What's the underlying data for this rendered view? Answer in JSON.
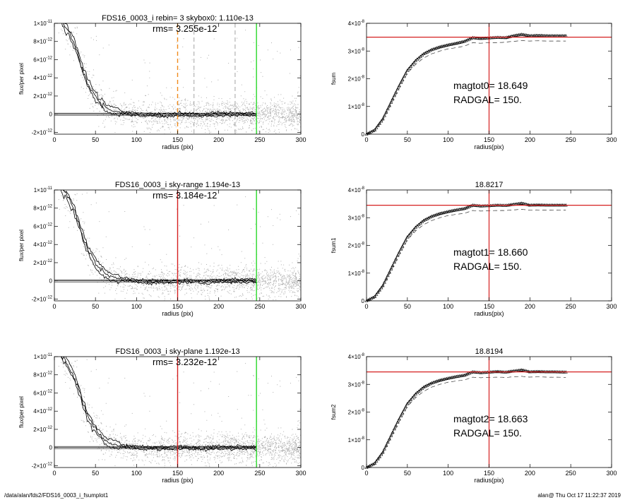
{
  "footer": {
    "path": "/data/alan/fds2/FDS16_0003_i_fsumplot1",
    "stamp": "alan@  Thu Oct 17 11:22:37 2019"
  },
  "colors": {
    "red": "#d62020",
    "green": "#2bd82b",
    "orange": "#f08a1c",
    "points": "#a8a8a8",
    "profile": "#000000",
    "dashed_gray": "#8c8c8c"
  },
  "chart_data": [
    {
      "type": "scatter",
      "panel": "profile-1",
      "title": "FDS16_0003_i rebin= 3    skybox0:  1.110e-13",
      "annotation": "rms= 3.255e-12",
      "xlabel": "radius (pix)",
      "ylabel": "flux/per pixel",
      "xlim": [
        0,
        300
      ],
      "ylim": [
        -2.2e-12,
        1e-11
      ],
      "xticks": [
        "0",
        "50",
        "100",
        "150",
        "200",
        "250",
        "300"
      ],
      "yticks": [
        {
          "value": 1e-11,
          "mant": "1×10",
          "exp": "-11"
        },
        {
          "value": 8e-12,
          "mant": "8×10",
          "exp": "-12"
        },
        {
          "value": 6e-12,
          "mant": "6×10",
          "exp": "-12"
        },
        {
          "value": 4e-12,
          "mant": "4×10",
          "exp": "-12"
        },
        {
          "value": 2e-12,
          "mant": "2×10",
          "exp": "-12"
        },
        {
          "value": 0,
          "mant": "0",
          "exp": ""
        },
        {
          "value": -2e-12,
          "mant": "-2×10",
          "exp": "-12"
        }
      ],
      "vlines": [
        {
          "x": 150,
          "color": "orange",
          "style": "dashed"
        },
        {
          "x": 170,
          "color": "dashed_gray",
          "style": "dashed"
        },
        {
          "x": 220,
          "color": "dashed_gray",
          "style": "dashed"
        },
        {
          "x": 246,
          "color": "green",
          "style": "solid"
        }
      ],
      "profile": {
        "r": [
          5,
          10,
          15,
          20,
          25,
          30,
          35,
          40,
          45,
          50,
          55,
          60,
          65,
          70,
          80,
          90,
          100,
          120,
          140,
          160,
          180,
          200,
          220,
          246
        ],
        "flux": [
          1.1e-11,
          1e-11,
          9.4e-12,
          8.6e-12,
          7.6e-12,
          6.2e-12,
          4.8e-12,
          3.6e-12,
          2.7e-12,
          2e-12,
          1.4e-12,
          9e-13,
          6e-13,
          4e-13,
          2e-13,
          1e-13,
          0,
          -1e-13,
          -1e-13,
          0,
          -1e-13,
          0,
          0,
          0
        ]
      }
    },
    {
      "type": "line",
      "panel": "growth-1",
      "title": "",
      "ylabel": "fsum",
      "xlabel": "radius(pix)",
      "xlim": [
        0,
        300
      ],
      "ylim": [
        0,
        4e-08
      ],
      "xticks": [
        "0",
        "50",
        "100",
        "150",
        "200",
        "250",
        "300"
      ],
      "yticks": [
        {
          "value": 4e-08,
          "mant": "4×10",
          "exp": "-8"
        },
        {
          "value": 3e-08,
          "mant": "3×10",
          "exp": "-8"
        },
        {
          "value": 2e-08,
          "mant": "2×10",
          "exp": "-8"
        },
        {
          "value": 1e-08,
          "mant": "1×10",
          "exp": "-8"
        },
        {
          "value": 0,
          "mant": "0",
          "exp": ""
        }
      ],
      "hline": 3.5e-08,
      "vline": 150,
      "annotations": [
        "magtot0=  18.649",
        "RADGAL=    150."
      ],
      "curve": {
        "r": [
          0,
          10,
          20,
          30,
          40,
          50,
          60,
          70,
          80,
          90,
          100,
          110,
          120,
          130,
          140,
          150,
          160,
          170,
          180,
          190,
          200,
          210,
          220,
          230,
          245
        ],
        "fsum": [
          0,
          1.5e-09,
          5.5e-09,
          1.15e-08,
          1.75e-08,
          2.3e-08,
          2.65e-08,
          2.9e-08,
          3.05e-08,
          3.15e-08,
          3.22e-08,
          3.28e-08,
          3.35e-08,
          3.48e-08,
          3.45e-08,
          3.47e-08,
          3.49e-08,
          3.48e-08,
          3.55e-08,
          3.6e-08,
          3.55e-08,
          3.56e-08,
          3.55e-08,
          3.55e-08,
          3.55e-08
        ]
      },
      "curve_lower": [
        0,
        1.2e-09,
        5e-09,
        1.08e-08,
        1.65e-08,
        2.2e-08,
        2.52e-08,
        2.75e-08,
        2.9e-08,
        3e-08,
        3.08e-08,
        3.12e-08,
        3.18e-08,
        3.3e-08,
        3.28e-08,
        3.3e-08,
        3.3e-08,
        3.32e-08,
        3.35e-08,
        3.38e-08,
        3.36e-08,
        3.37e-08,
        3.36e-08,
        3.36e-08,
        3.36e-08
      ]
    },
    {
      "type": "scatter",
      "panel": "profile-2",
      "title": "FDS16_0003_i sky-range  1.194e-13",
      "annotation": "rms= 3.184e-12",
      "xlabel": "radius (pix)",
      "ylabel": "flux/per pixel",
      "xlim": [
        0,
        300
      ],
      "ylim": [
        -2.2e-12,
        1e-11
      ],
      "xticks": [
        "0",
        "50",
        "100",
        "150",
        "200",
        "250",
        "300"
      ],
      "yticks": [
        {
          "value": 1e-11,
          "mant": "1×10",
          "exp": "-11"
        },
        {
          "value": 8e-12,
          "mant": "8×10",
          "exp": "-12"
        },
        {
          "value": 6e-12,
          "mant": "6×10",
          "exp": "-12"
        },
        {
          "value": 4e-12,
          "mant": "4×10",
          "exp": "-12"
        },
        {
          "value": 2e-12,
          "mant": "2×10",
          "exp": "-12"
        },
        {
          "value": 0,
          "mant": "0",
          "exp": ""
        },
        {
          "value": -2e-12,
          "mant": "-2×10",
          "exp": "-12"
        }
      ],
      "vlines": [
        {
          "x": 150,
          "color": "red",
          "style": "solid"
        },
        {
          "x": 246,
          "color": "green",
          "style": "solid"
        }
      ],
      "profile": {
        "r": [
          5,
          10,
          15,
          20,
          25,
          30,
          35,
          40,
          45,
          50,
          55,
          60,
          65,
          70,
          80,
          90,
          100,
          120,
          140,
          160,
          180,
          200,
          220,
          246
        ],
        "flux": [
          1.1e-11,
          1e-11,
          9.4e-12,
          8.6e-12,
          7.6e-12,
          6.2e-12,
          4.8e-12,
          3.6e-12,
          2.7e-12,
          2e-12,
          1.4e-12,
          9e-13,
          6e-13,
          4e-13,
          2e-13,
          1e-13,
          0,
          -1e-13,
          -1e-13,
          0,
          -1e-13,
          0,
          0,
          0
        ]
      }
    },
    {
      "type": "line",
      "panel": "growth-2",
      "title": "18.8217",
      "ylabel": "fsum1",
      "xlabel": "radius(pix)",
      "xlim": [
        0,
        300
      ],
      "ylim": [
        0,
        4e-08
      ],
      "xticks": [
        "0",
        "50",
        "100",
        "150",
        "200",
        "250",
        "300"
      ],
      "yticks": [
        {
          "value": 4e-08,
          "mant": "4×10",
          "exp": "-8"
        },
        {
          "value": 3e-08,
          "mant": "3×10",
          "exp": "-8"
        },
        {
          "value": 2e-08,
          "mant": "2×10",
          "exp": "-8"
        },
        {
          "value": 1e-08,
          "mant": "1×10",
          "exp": "-8"
        },
        {
          "value": 0,
          "mant": "0",
          "exp": ""
        }
      ],
      "hline": 3.45e-08,
      "vline": 150,
      "annotations": [
        "magtot1=  18.660",
        "RADGAL=    150."
      ],
      "curve": {
        "r": [
          0,
          10,
          20,
          30,
          40,
          50,
          60,
          70,
          80,
          90,
          100,
          110,
          120,
          130,
          140,
          150,
          160,
          170,
          180,
          190,
          200,
          210,
          220,
          230,
          245
        ],
        "fsum": [
          0,
          1.5e-09,
          5.5e-09,
          1.15e-08,
          1.75e-08,
          2.3e-08,
          2.65e-08,
          2.9e-08,
          3.05e-08,
          3.15e-08,
          3.22e-08,
          3.28e-08,
          3.33e-08,
          3.45e-08,
          3.42e-08,
          3.43e-08,
          3.45e-08,
          3.44e-08,
          3.48e-08,
          3.52e-08,
          3.45e-08,
          3.46e-08,
          3.45e-08,
          3.45e-08,
          3.45e-08
        ]
      },
      "curve_lower": [
        0,
        1.2e-09,
        5e-09,
        1.08e-08,
        1.65e-08,
        2.2e-08,
        2.52e-08,
        2.75e-08,
        2.9e-08,
        3e-08,
        3.08e-08,
        3.12e-08,
        3.16e-08,
        3.26e-08,
        3.24e-08,
        3.25e-08,
        3.26e-08,
        3.26e-08,
        3.28e-08,
        3.3e-08,
        3.27e-08,
        3.28e-08,
        3.27e-08,
        3.27e-08,
        3.27e-08
      ]
    },
    {
      "type": "scatter",
      "panel": "profile-3",
      "title": "FDS16_0003_i sky-plane  1.192e-13",
      "annotation": "rms= 3.232e-12",
      "xlabel": "radius (pix)",
      "ylabel": "flux/per pixel",
      "xlim": [
        0,
        300
      ],
      "ylim": [
        -2.2e-12,
        1e-11
      ],
      "xticks": [
        "0",
        "50",
        "100",
        "150",
        "200",
        "250",
        "300"
      ],
      "yticks": [
        {
          "value": 1e-11,
          "mant": "1×10",
          "exp": "-11"
        },
        {
          "value": 8e-12,
          "mant": "8×10",
          "exp": "-12"
        },
        {
          "value": 6e-12,
          "mant": "6×10",
          "exp": "-12"
        },
        {
          "value": 4e-12,
          "mant": "4×10",
          "exp": "-12"
        },
        {
          "value": 2e-12,
          "mant": "2×10",
          "exp": "-12"
        },
        {
          "value": 0,
          "mant": "0",
          "exp": ""
        },
        {
          "value": -2e-12,
          "mant": "-2×10",
          "exp": "-12"
        }
      ],
      "vlines": [
        {
          "x": 150,
          "color": "red",
          "style": "solid"
        },
        {
          "x": 246,
          "color": "green",
          "style": "solid"
        }
      ],
      "profile": {
        "r": [
          5,
          10,
          15,
          20,
          25,
          30,
          35,
          40,
          45,
          50,
          55,
          60,
          65,
          70,
          80,
          90,
          100,
          120,
          140,
          160,
          180,
          200,
          220,
          246
        ],
        "flux": [
          1.1e-11,
          1e-11,
          9.4e-12,
          8.6e-12,
          7.6e-12,
          6.2e-12,
          4.8e-12,
          3.6e-12,
          2.7e-12,
          2e-12,
          1.4e-12,
          9e-13,
          6e-13,
          4e-13,
          2e-13,
          1e-13,
          0,
          -1e-13,
          -1e-13,
          0,
          -1e-13,
          0,
          0,
          0
        ]
      }
    },
    {
      "type": "line",
      "panel": "growth-3",
      "title": "18.8194",
      "ylabel": "fsum2",
      "xlabel": "radius(pix)",
      "xlim": [
        0,
        300
      ],
      "ylim": [
        0,
        4e-08
      ],
      "xticks": [
        "0",
        "50",
        "100",
        "150",
        "200",
        "250",
        "300"
      ],
      "yticks": [
        {
          "value": 4e-08,
          "mant": "4×10",
          "exp": "-8"
        },
        {
          "value": 3e-08,
          "mant": "3×10",
          "exp": "-8"
        },
        {
          "value": 2e-08,
          "mant": "2×10",
          "exp": "-8"
        },
        {
          "value": 1e-08,
          "mant": "1×10",
          "exp": "-8"
        },
        {
          "value": 0,
          "mant": "0",
          "exp": ""
        }
      ],
      "hline": 3.45e-08,
      "vline": 150,
      "annotations": [
        "magtot2=  18.663",
        "RADGAL=    150."
      ],
      "curve": {
        "r": [
          0,
          10,
          20,
          30,
          40,
          50,
          60,
          70,
          80,
          90,
          100,
          110,
          120,
          130,
          140,
          150,
          160,
          170,
          180,
          190,
          200,
          210,
          220,
          230,
          245
        ],
        "fsum": [
          0,
          1.5e-09,
          5.5e-09,
          1.15e-08,
          1.75e-08,
          2.3e-08,
          2.65e-08,
          2.9e-08,
          3.05e-08,
          3.15e-08,
          3.22e-08,
          3.28e-08,
          3.33e-08,
          3.45e-08,
          3.42e-08,
          3.44e-08,
          3.46e-08,
          3.44e-08,
          3.48e-08,
          3.52e-08,
          3.45e-08,
          3.46e-08,
          3.45e-08,
          3.45e-08,
          3.44e-08
        ]
      },
      "curve_lower": [
        0,
        1.2e-09,
        5e-09,
        1.08e-08,
        1.65e-08,
        2.2e-08,
        2.52e-08,
        2.75e-08,
        2.9e-08,
        3e-08,
        3.08e-08,
        3.12e-08,
        3.16e-08,
        3.26e-08,
        3.24e-08,
        3.25e-08,
        3.26e-08,
        3.25e-08,
        3.27e-08,
        3.29e-08,
        3.26e-08,
        3.27e-08,
        3.26e-08,
        3.26e-08,
        3.25e-08
      ]
    }
  ]
}
